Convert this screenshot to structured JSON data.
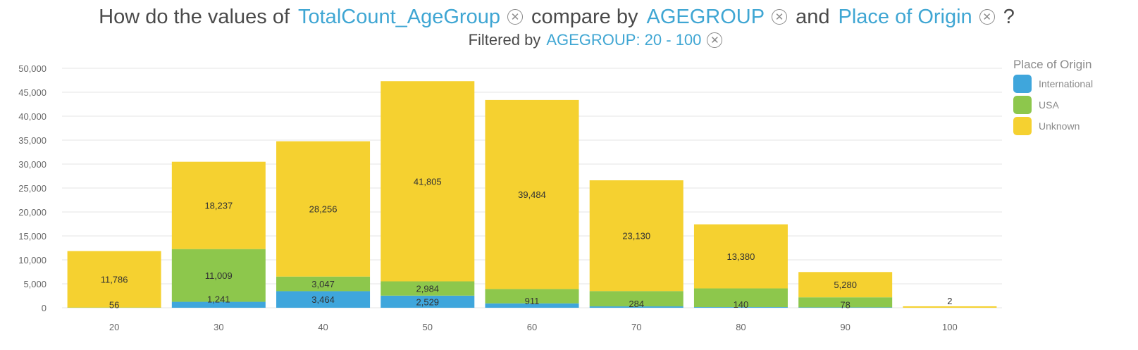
{
  "title": {
    "prefix": "How do the values of",
    "measure": "TotalCount_AgeGroup",
    "middle": "compare by",
    "dim1": "AGEGROUP",
    "and": "and",
    "dim2": "Place of Origin",
    "suffix": "?"
  },
  "subtitle": {
    "prefix": "Filtered by",
    "filter": "AGEGROUP: 20 - 100"
  },
  "legend": {
    "title": "Place of Origin",
    "items": [
      {
        "label": "International",
        "color": "#3fa6dc"
      },
      {
        "label": "USA",
        "color": "#8dc74c"
      },
      {
        "label": "Unknown",
        "color": "#f5d130"
      }
    ]
  },
  "chart_data": {
    "type": "bar",
    "stacked": true,
    "categories": [
      "20",
      "30",
      "40",
      "50",
      "60",
      "70",
      "80",
      "90",
      "100"
    ],
    "series": [
      {
        "name": "International",
        "color": "#3fa6dc",
        "values": [
          0,
          1241,
          3464,
          2529,
          911,
          284,
          140,
          78,
          2
        ]
      },
      {
        "name": "USA",
        "color": "#8dc74c",
        "values": [
          56,
          11009,
          3047,
          2984,
          3000,
          3200,
          3900,
          2100,
          0
        ]
      },
      {
        "name": "Unknown",
        "color": "#f5d130",
        "values": [
          11786,
          18237,
          28256,
          41805,
          39484,
          23130,
          13380,
          5280,
          300
        ]
      }
    ],
    "labels": [
      [
        {
          "series": 1,
          "text": "56"
        },
        {
          "series": 2,
          "text": "11,786"
        }
      ],
      [
        {
          "series": 0,
          "text": "1,241"
        },
        {
          "series": 1,
          "text": "11,009"
        },
        {
          "series": 2,
          "text": "18,237"
        }
      ],
      [
        {
          "series": 0,
          "text": "3,464"
        },
        {
          "series": 1,
          "text": "3,047"
        },
        {
          "series": 2,
          "text": "28,256"
        }
      ],
      [
        {
          "series": 0,
          "text": "2,529"
        },
        {
          "series": 1,
          "text": "2,984"
        },
        {
          "series": 2,
          "text": "41,805"
        }
      ],
      [
        {
          "series": 0,
          "text": "911"
        },
        {
          "series": 2,
          "text": "39,484"
        }
      ],
      [
        {
          "series": 0,
          "text": "284"
        },
        {
          "series": 2,
          "text": "23,130"
        }
      ],
      [
        {
          "series": 0,
          "text": "140"
        },
        {
          "series": 2,
          "text": "13,380"
        }
      ],
      [
        {
          "series": 0,
          "text": "78"
        },
        {
          "series": 2,
          "text": "5,280"
        }
      ],
      [
        {
          "series": 0,
          "text": "2"
        }
      ]
    ],
    "ylim": [
      0,
      50000
    ],
    "yticks": [
      "0",
      "5,000",
      "10,000",
      "15,000",
      "20,000",
      "25,000",
      "30,000",
      "35,000",
      "40,000",
      "45,000",
      "50,000"
    ],
    "grid": true,
    "legend_position": "top-right"
  }
}
